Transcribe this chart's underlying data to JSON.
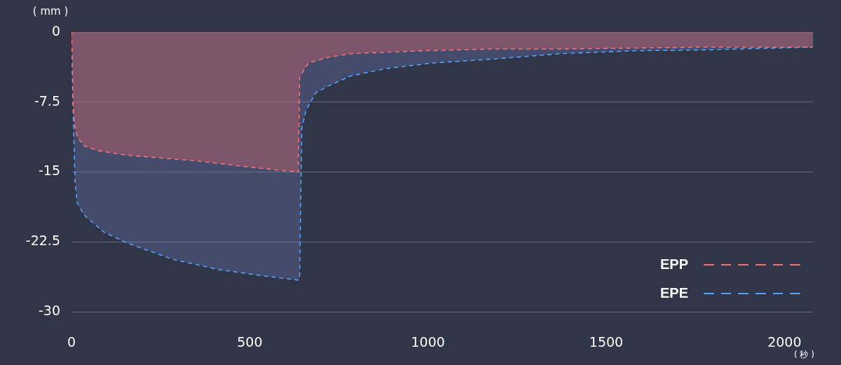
{
  "chart_data": {
    "type": "area",
    "xlabel": "( 秒 )",
    "ylabel": "( mm )",
    "xlim": [
      0,
      2080
    ],
    "xticks": [
      0,
      500,
      1000,
      1500,
      2000
    ],
    "ylim": [
      -30,
      0
    ],
    "yticks": [
      0,
      -7.5,
      -15,
      -22.5,
      -30
    ],
    "grid": "y",
    "legend": "bottom right",
    "marker": "none",
    "line_style": "dashed",
    "series": [
      {
        "name": "EPP",
        "color": "#ff6b6b",
        "x": [
          0,
          2,
          4,
          8,
          16,
          35,
          75,
          154,
          219,
          350,
          482,
          581,
          636,
          640,
          665,
          719,
          783,
          980,
          1177,
          1374,
          1768,
          2080
        ],
        "values": [
          0,
          -2.6,
          -7.5,
          -9.7,
          -11.2,
          -12.2,
          -12.7,
          -13.2,
          -13.4,
          -13.8,
          -14.4,
          -14.8,
          -15.0,
          -4.8,
          -3.3,
          -2.7,
          -2.3,
          -2.0,
          -1.8,
          -1.8,
          -1.6,
          -1.6
        ]
      },
      {
        "name": "EPE",
        "color": "#4da3ff",
        "x": [
          0,
          2,
          4,
          10,
          16,
          35,
          89,
          154,
          287,
          417,
          549,
          636,
          640,
          646,
          659,
          685,
          719,
          783,
          882,
          1014,
          1177,
          1374,
          1571,
          1768,
          2080
        ],
        "values": [
          0,
          -3,
          -7.5,
          -16,
          -18.3,
          -19.6,
          -21.4,
          -22.6,
          -24.4,
          -25.5,
          -26.2,
          -26.6,
          -26.4,
          -10.3,
          -8.3,
          -6.5,
          -5.8,
          -4.7,
          -3.9,
          -3.3,
          -2.9,
          -2.3,
          -2.0,
          -1.9,
          -1.6
        ]
      }
    ]
  }
}
